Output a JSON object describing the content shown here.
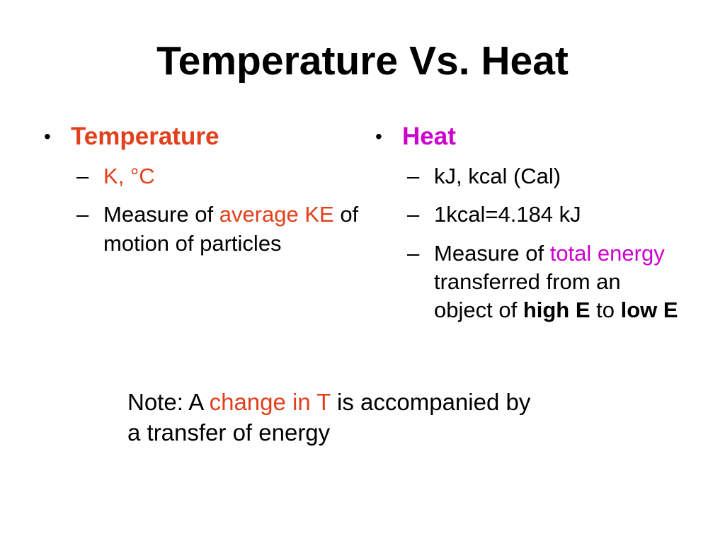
{
  "title": "Temperature Vs. Heat",
  "markers": {
    "bullet": "•",
    "dash": "–"
  },
  "left": {
    "heading": "Temperature",
    "sub1": "K, °C",
    "sub2_part1": "Measure of ",
    "sub2_part2": "average KE",
    "sub2_part3": " of motion of particles"
  },
  "right": {
    "heading": "Heat",
    "sub1": "kJ, kcal (Cal)",
    "sub2": "1kcal=4.184 kJ",
    "sub3_part1": "Measure of ",
    "sub3_part2": "total energy",
    "sub3_part3": " transferred from an object of ",
    "sub3_part4": "high E",
    "sub3_part5": " to ",
    "sub3_part6": "low E"
  },
  "note": {
    "part1": "Note: A ",
    "part2": "change in T",
    "part3": " is accompanied by a transfer of energy"
  },
  "colors": {
    "accent_red": "#e2401c",
    "accent_magenta": "#cc00cc",
    "text": "#000000",
    "background": "#ffffff"
  }
}
